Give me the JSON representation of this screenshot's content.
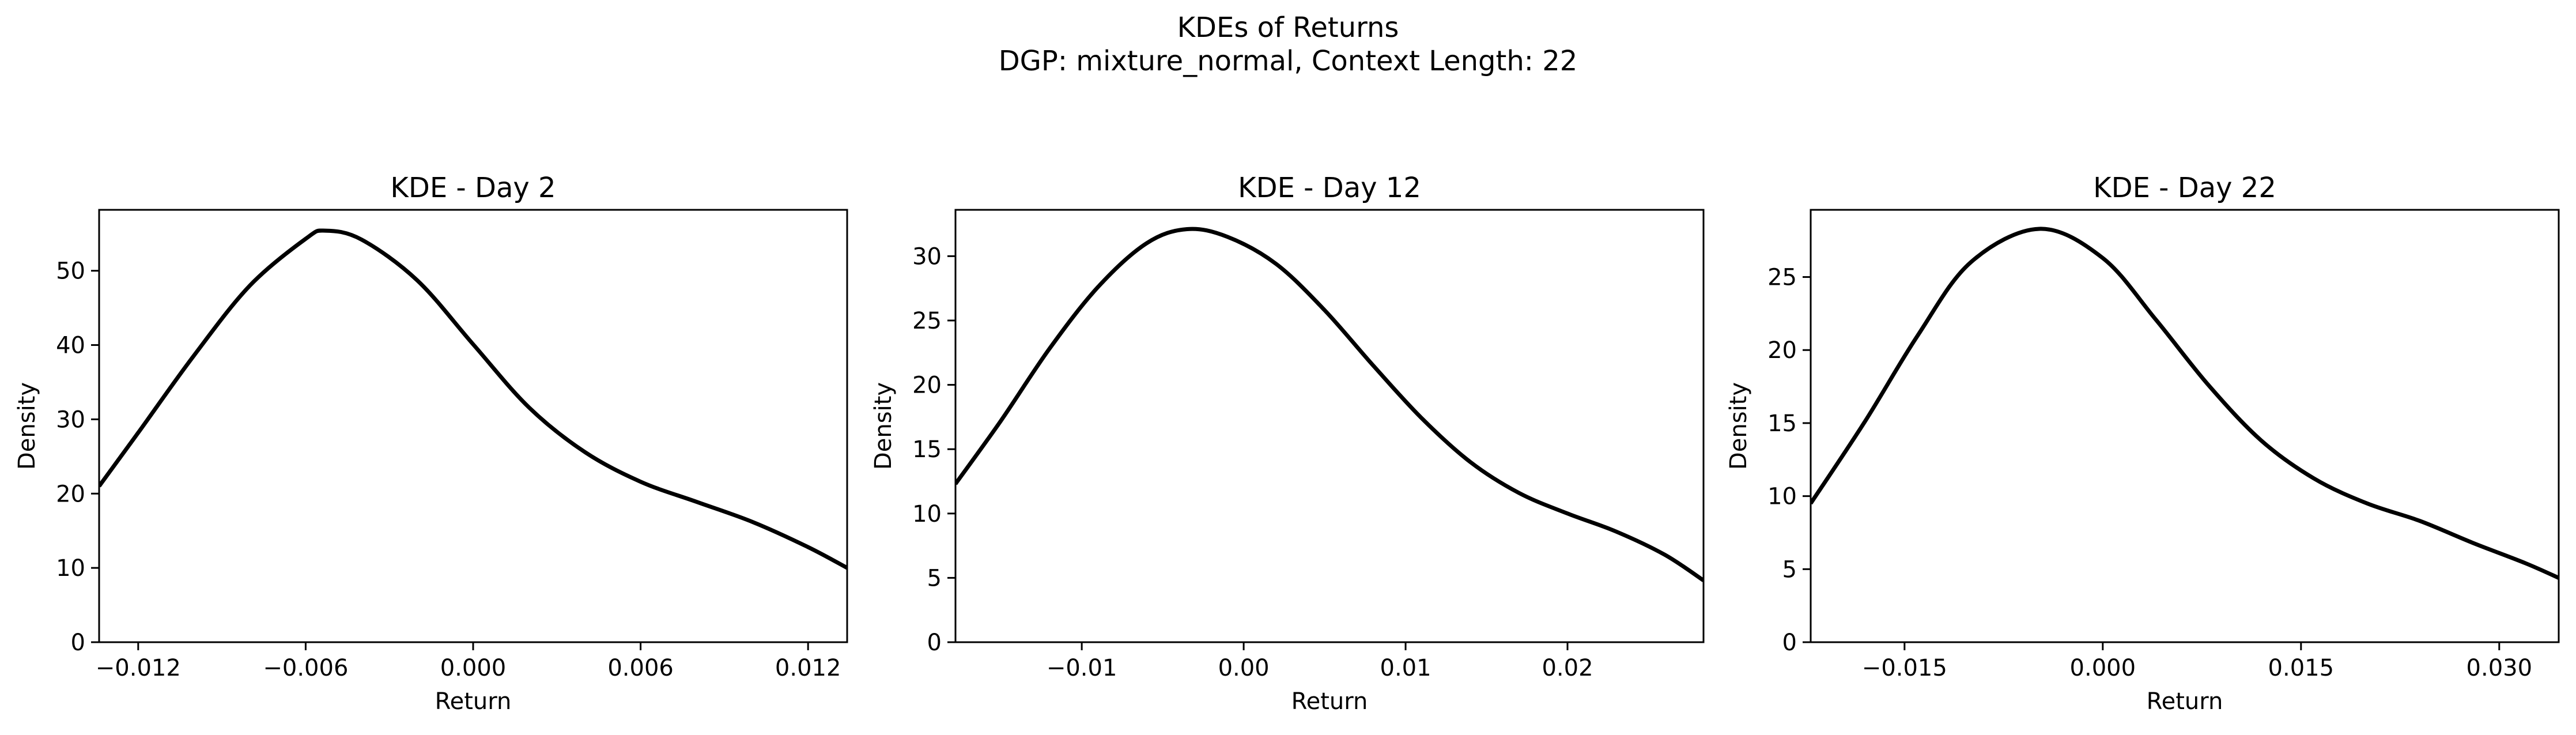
{
  "figure": {
    "title_line1": "KDEs of Returns",
    "title_line2": "DGP: mixture_normal, Context Length: 22"
  },
  "chart_data": [
    {
      "type": "line",
      "title": "KDE - Day 2",
      "xlabel": "Return",
      "ylabel": "Density",
      "xlim": [
        -0.0134,
        0.0134
      ],
      "ylim": [
        0,
        58.2
      ],
      "xticks": [
        -0.012,
        -0.006,
        0.0,
        0.006,
        0.012
      ],
      "xtick_labels": [
        "−0.012",
        "−0.006",
        "0.000",
        "0.006",
        "0.012"
      ],
      "yticks": [
        0,
        10,
        20,
        30,
        40,
        50
      ],
      "ytick_labels": [
        "0",
        "10",
        "20",
        "30",
        "40",
        "50"
      ],
      "grid": false,
      "color": "#000000",
      "series": [
        {
          "x": [
            -0.0134,
            -0.012,
            -0.01,
            -0.008,
            -0.006,
            -0.0053,
            -0.004,
            -0.002,
            0.0,
            0.002,
            0.004,
            0.006,
            0.008,
            0.01,
            0.012,
            0.0134
          ],
          "y": [
            21.0,
            28.2,
            38.6,
            48.0,
            54.3,
            55.4,
            54.2,
            48.7,
            40.1,
            31.6,
            25.6,
            21.6,
            18.9,
            16.2,
            12.8,
            10.0
          ]
        }
      ]
    },
    {
      "type": "line",
      "title": "KDE - Day 12",
      "xlabel": "Return",
      "ylabel": "Density",
      "xlim": [
        -0.0178,
        0.0284
      ],
      "ylim": [
        0,
        33.6
      ],
      "xticks": [
        -0.01,
        0.0,
        0.01,
        0.02
      ],
      "xtick_labels": [
        "−0.01",
        "0.00",
        "0.01",
        "0.02"
      ],
      "yticks": [
        0,
        5,
        10,
        15,
        20,
        25,
        30
      ],
      "ytick_labels": [
        "0",
        "5",
        "10",
        "15",
        "20",
        "25",
        "30"
      ],
      "grid": false,
      "color": "#000000",
      "series": [
        {
          "x": [
            -0.0178,
            -0.015,
            -0.012,
            -0.009,
            -0.006,
            -0.0035,
            -0.001,
            0.002,
            0.005,
            0.008,
            0.011,
            0.014,
            0.017,
            0.02,
            0.023,
            0.026,
            0.0284
          ],
          "y": [
            12.3,
            17.2,
            22.8,
            27.6,
            31.0,
            32.1,
            31.5,
            29.4,
            25.8,
            21.5,
            17.4,
            14.0,
            11.6,
            10.0,
            8.6,
            6.8,
            4.8
          ]
        }
      ]
    },
    {
      "type": "line",
      "title": "KDE - Day 22",
      "xlabel": "Return",
      "ylabel": "Density",
      "xlim": [
        -0.0221,
        0.0345
      ],
      "ylim": [
        0,
        29.6
      ],
      "xticks": [
        -0.015,
        0.0,
        0.015,
        0.03
      ],
      "xtick_labels": [
        "−0.015",
        "0.000",
        "0.015",
        "0.030"
      ],
      "yticks": [
        0,
        5,
        10,
        15,
        20,
        25
      ],
      "ytick_labels": [
        "0",
        "5",
        "10",
        "15",
        "20",
        "25"
      ],
      "grid": false,
      "color": "#000000",
      "series": [
        {
          "x": [
            -0.0221,
            -0.018,
            -0.014,
            -0.01,
            -0.0048,
            0.0,
            0.004,
            0.008,
            0.012,
            0.016,
            0.02,
            0.024,
            0.028,
            0.032,
            0.0345
          ],
          "y": [
            9.5,
            15.1,
            21.0,
            26.0,
            28.3,
            26.3,
            22.1,
            17.6,
            13.8,
            11.2,
            9.5,
            8.3,
            6.8,
            5.4,
            4.4
          ]
        }
      ]
    }
  ]
}
